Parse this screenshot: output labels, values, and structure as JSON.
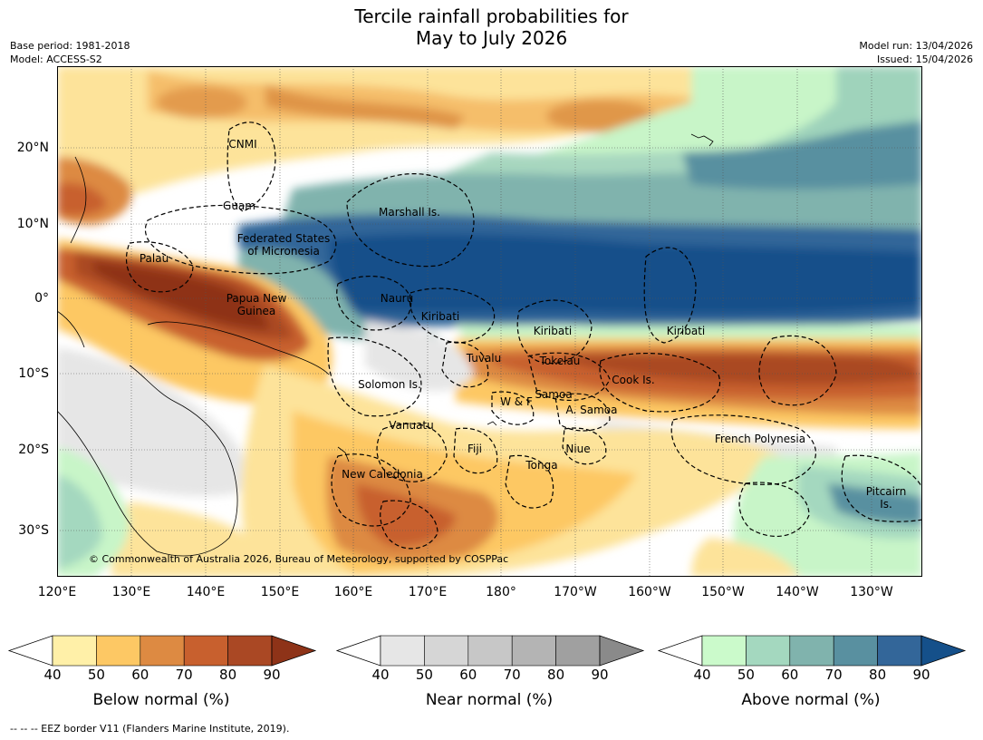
{
  "title": {
    "line1": "Tercile rainfall probabilities for",
    "line2": "May to July 2026"
  },
  "meta": {
    "base_period": "Base period: 1981-2018",
    "model": "Model: ACCESS-S2",
    "model_run": "Model run: 13/04/2026",
    "issued": "Issued: 15/04/2026"
  },
  "axes": {
    "lat_ticks": [
      "20°N",
      "10°N",
      "0°",
      "10°S",
      "20°S",
      "30°S"
    ],
    "lon_ticks": [
      "120°E",
      "130°E",
      "140°E",
      "150°E",
      "160°E",
      "170°E",
      "180°",
      "170°W",
      "160°W",
      "150°W",
      "140°W",
      "130°W"
    ]
  },
  "places": {
    "cnmi": "CNMI",
    "guam": "Guam",
    "marshall": "Marshall Is.",
    "fsm": "Federated States\nof Micronesia",
    "palau": "Palau",
    "png": "Papua New\nGuinea",
    "nauru": "Nauru",
    "kiribati_w": "Kiribati",
    "kiribati_c": "Kiribati",
    "kiribati_e": "Kiribati",
    "tuvalu": "Tuvalu",
    "tokelau": "Tokelau",
    "cook": "Cook Is.",
    "solomon": "Solomon Is.",
    "wf": "W & F",
    "samoa": "Samoa",
    "asamoa": "A. Samoa",
    "vanuatu": "Vanuatu",
    "fiji": "Fiji",
    "niue": "Niue",
    "french_polynesia": "French Polynesia",
    "tonga": "Tonga",
    "new_caledonia": "New Caledonia",
    "pitcairn": "Pitcairn\nIs."
  },
  "copyright": "© Commonwealth of Australia 2026, Bureau of Meteorology, supported by COSPPac",
  "colorbars": [
    {
      "title": "Below normal (%)",
      "ticks": [
        "40",
        "50",
        "60",
        "70",
        "80",
        "90"
      ],
      "colors": [
        "#fff0a8",
        "#fdc864",
        "#dd8a42",
        "#c8602e",
        "#aa4824",
        "#8e3318"
      ]
    },
    {
      "title": "Near normal (%)",
      "ticks": [
        "40",
        "50",
        "60",
        "70",
        "80",
        "90"
      ],
      "colors": [
        "#e6e6e6",
        "#d6d6d6",
        "#c7c7c7",
        "#b4b4b4",
        "#a0a0a0",
        "#8a8a8a"
      ]
    },
    {
      "title": "Above normal (%)",
      "ticks": [
        "40",
        "50",
        "60",
        "70",
        "80",
        "90"
      ],
      "colors": [
        "#cbfacb",
        "#a4d8bf",
        "#80b3ad",
        "#5990a0",
        "#336699",
        "#15508a"
      ]
    }
  ],
  "footnote": "--  --  -- EEZ border V11 (Flanders Marine Institute, 2019)."
}
